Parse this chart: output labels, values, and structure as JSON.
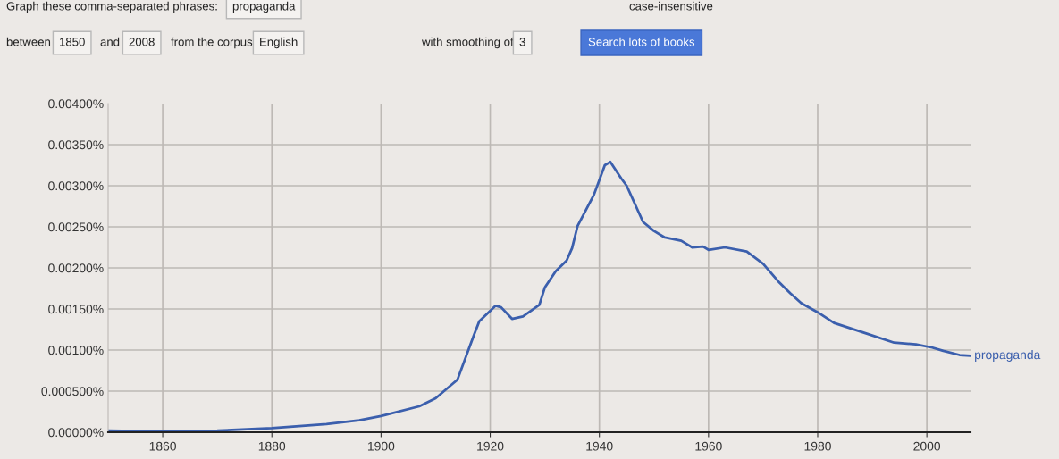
{
  "chart_data": {
    "type": "line",
    "x": [
      1850,
      1860,
      1870,
      1880,
      1890,
      1896,
      1900,
      1907,
      1910,
      1914,
      1917,
      1918,
      1921,
      1922,
      1924,
      1926,
      1929,
      1930,
      1932,
      1934,
      1935,
      1936,
      1939,
      1941,
      1942,
      1944,
      1945,
      1948,
      1950,
      1952,
      1955,
      1957,
      1959,
      1960,
      1963,
      1967,
      1970,
      1973,
      1975,
      1977,
      1980,
      1983,
      1989,
      1994,
      1998,
      2001,
      2003,
      2006,
      2008
    ],
    "series": [
      {
        "name": "propaganda",
        "color": "#3b5fad",
        "values": [
          2e-05,
          1e-05,
          2e-05,
          5e-05,
          0.0001,
          0.000145,
          0.000196,
          0.000315,
          0.000413,
          0.00064,
          0.00118,
          0.00135,
          0.00154,
          0.00152,
          0.00138,
          0.00141,
          0.00155,
          0.00176,
          0.00196,
          0.00209,
          0.00224,
          0.00251,
          0.00289,
          0.00325,
          0.00329,
          0.00309,
          0.003,
          0.00256,
          0.00245,
          0.00237,
          0.00233,
          0.00225,
          0.00226,
          0.00222,
          0.00225,
          0.0022,
          0.00205,
          0.00182,
          0.00169,
          0.00157,
          0.00146,
          0.00133,
          0.0012,
          0.00109,
          0.00107,
          0.00103,
          0.00099,
          0.00094,
          0.00093
        ]
      }
    ],
    "xlim": [
      1850,
      2008
    ],
    "xticks": [
      1860,
      1880,
      1900,
      1920,
      1940,
      1960,
      1980,
      2000
    ],
    "ylim": [
      0,
      0.004
    ],
    "yticks": [
      {
        "value": 0,
        "label": "0.00000%"
      },
      {
        "value": 0.0005,
        "label": "0.000500%"
      },
      {
        "value": 0.001,
        "label": "0.00100%"
      },
      {
        "value": 0.0015,
        "label": "0.00150%"
      },
      {
        "value": 0.002,
        "label": "0.00200%"
      },
      {
        "value": 0.0025,
        "label": "0.00250%"
      },
      {
        "value": 0.003,
        "label": "0.00300%"
      },
      {
        "value": 0.0035,
        "label": "0.00350%"
      },
      {
        "value": 0.004,
        "label": "0.00400%"
      }
    ],
    "grid": true,
    "legend": false,
    "annotations": [
      "Graph these comma-separated phrases:",
      "propaganda",
      "case-insensitive",
      "between",
      "1850",
      "and",
      "2008",
      "from the corpus",
      "English",
      "with smoothing of",
      "3",
      "Search lots of books"
    ]
  }
}
